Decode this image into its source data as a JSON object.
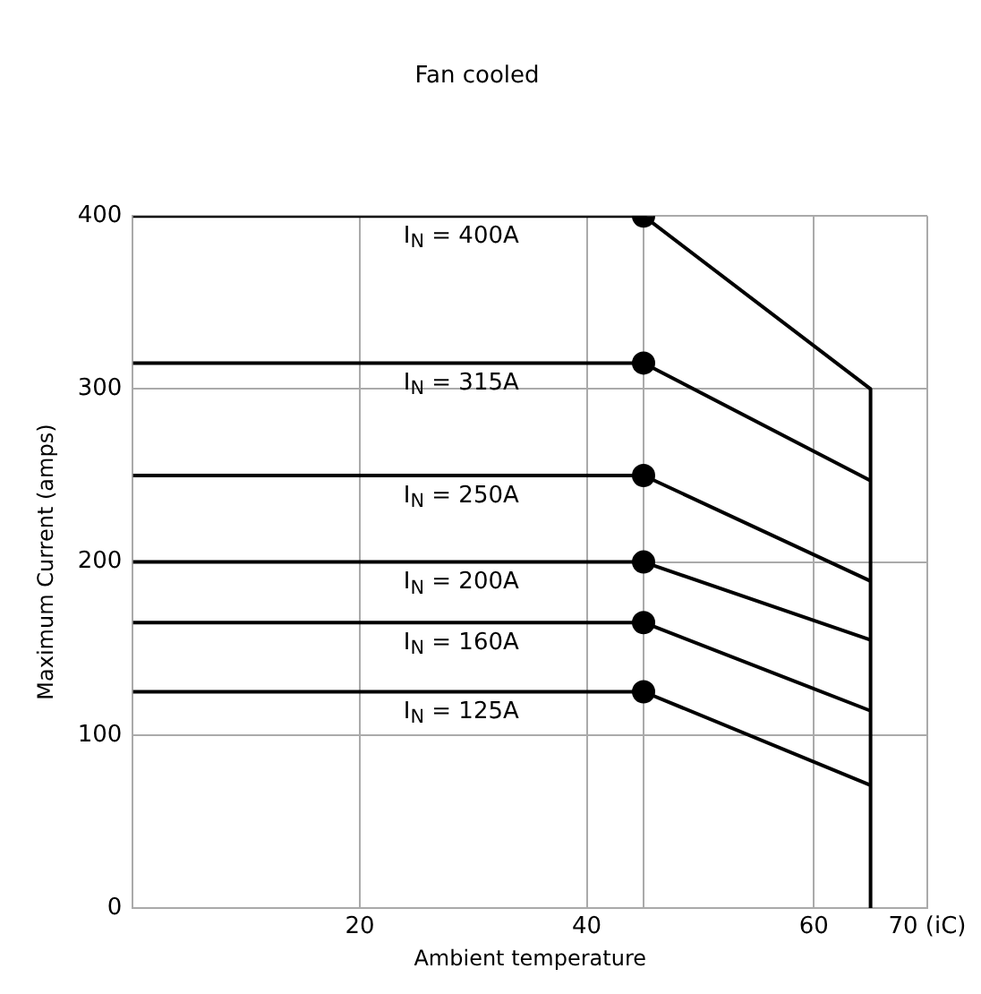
{
  "chart_data": {
    "type": "line",
    "title": "Fan cooled",
    "xlabel": "Ambient temperature",
    "ylabel": "Maximum Current (amps)",
    "xlim": [
      0,
      70
    ],
    "xticks": [
      20,
      40,
      {
        "value": 45,
        "label": null
      },
      60,
      {
        "value": 70,
        "label": "70 (iC)"
      }
    ],
    "ylim": [
      0,
      400
    ],
    "yticks": [
      0,
      100,
      200,
      300,
      400
    ],
    "grid": true,
    "legend": false,
    "marker": "none",
    "line_style": "solid",
    "series": [
      {
        "name": "I$_{N}$ = 400A",
        "color": "#000000",
        "x": [
          0,
          45,
          65
        ],
        "values": [
          400,
          400,
          300
        ]
      },
      {
        "name": "I$_{N}$ = 315A",
        "color": "#000000",
        "x": [
          0,
          45,
          65
        ],
        "values": [
          315,
          315,
          247
        ]
      },
      {
        "name": "I$_{N}$ = 250A",
        "color": "#000000",
        "x": [
          0,
          45,
          65
        ],
        "values": [
          250,
          250,
          189
        ]
      },
      {
        "name": "I$_{N}$ = 200A",
        "color": "#000000",
        "x": [
          0,
          45,
          65
        ],
        "values": [
          200,
          200,
          155
        ]
      },
      {
        "name": "I$_{N}$ = 160A",
        "color": "#000000",
        "x": [
          0,
          45,
          65
        ],
        "values": [
          165,
          165,
          114
        ]
      },
      {
        "name": "I$_{N}$ = 125A",
        "color": "#000000",
        "x": [
          0,
          45,
          65
        ],
        "values": [
          125,
          125,
          71
        ]
      },
      {
        "color": "#000000",
        "x": [
          65,
          65
        ],
        "values": [
          300,
          0
        ]
      },
      {
        "type": "scatter",
        "marker": "circle",
        "color": "#000000",
        "x": [
          45,
          45,
          45,
          45,
          45,
          45
        ],
        "values": [
          400,
          315,
          250,
          200,
          165,
          125
        ]
      }
    ]
  }
}
